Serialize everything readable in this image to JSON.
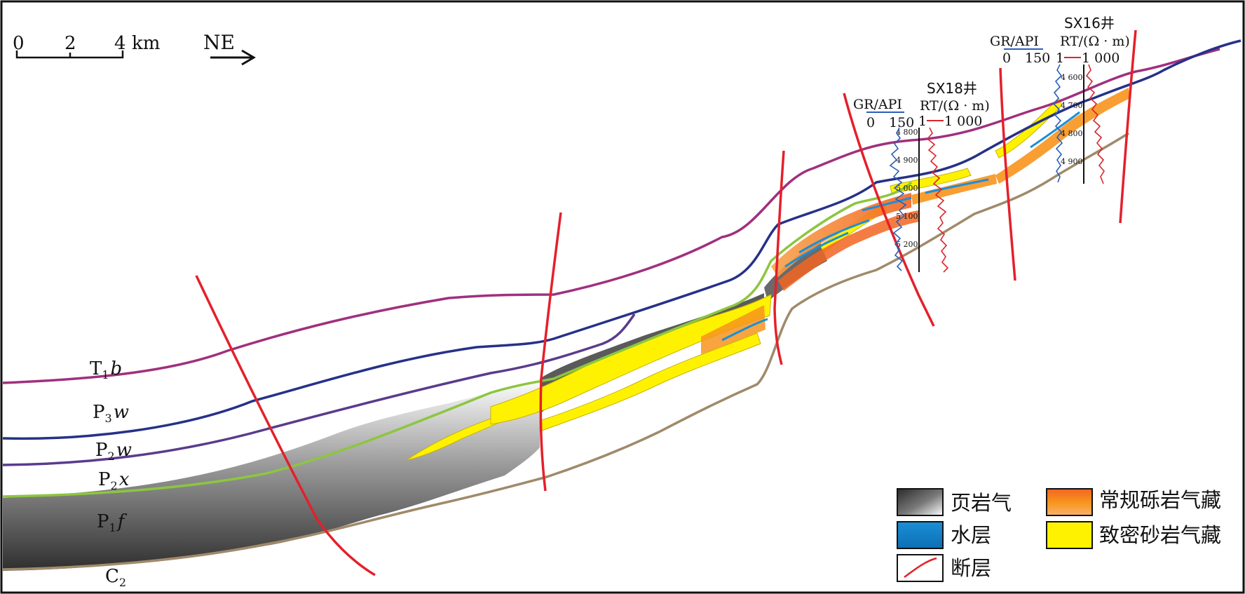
{
  "scale_bar": {
    "ticks": [
      "0",
      "2",
      "4"
    ],
    "unit": "km"
  },
  "direction": {
    "label": "NE"
  },
  "formations": [
    {
      "name": "T",
      "sub": "1",
      "suffix": "b",
      "color": "#a0307e"
    },
    {
      "name": "P",
      "sub": "3",
      "suffix": "w",
      "color": "#263188"
    },
    {
      "name": "P",
      "sub": "2",
      "suffix": "w",
      "color": "#5a3b8c"
    },
    {
      "name": "P",
      "sub": "2",
      "suffix": "x",
      "color": "#8cc63f"
    },
    {
      "name": "P",
      "sub": "1",
      "suffix": "f",
      "color": "#555555"
    },
    {
      "name": "C",
      "sub": "2",
      "suffix": "",
      "color": "#a08a6a"
    }
  ],
  "wells": [
    {
      "name": "SX18井",
      "gr_label": "GR/API",
      "gr_scale": [
        "0",
        "150"
      ],
      "rt_label": "RT/(Ω · m)",
      "rt_scale": [
        "1",
        "1 000"
      ],
      "depths": [
        "4 800",
        "4 900",
        "5 000",
        "5 100",
        "5 200"
      ]
    },
    {
      "name": "SX16井",
      "gr_label": "GR/API",
      "gr_scale": [
        "0",
        "150"
      ],
      "rt_label": "RT/(Ω · m)",
      "rt_scale": [
        "1",
        "1 000"
      ],
      "depths": [
        "4 600",
        "4 700",
        "4 800",
        "4 900"
      ]
    }
  ],
  "legend": [
    {
      "label": "页岩气",
      "swatch": "shale-gas",
      "color": "#4d4d4d"
    },
    {
      "label": "常规砾岩气藏",
      "swatch": "conglomerate-gas",
      "color": "#f7941d"
    },
    {
      "label": "水层",
      "swatch": "water-layer",
      "color": "#1b8fd6"
    },
    {
      "label": "致密砂岩气藏",
      "swatch": "tight-sandstone-gas",
      "color": "#fff200"
    },
    {
      "label": "断层",
      "swatch": "fault",
      "color": "#e4202a"
    }
  ],
  "colors": {
    "fault": "#e4202a",
    "gr_curve": "#2b5fb8",
    "rt_curve": "#d9262c"
  }
}
